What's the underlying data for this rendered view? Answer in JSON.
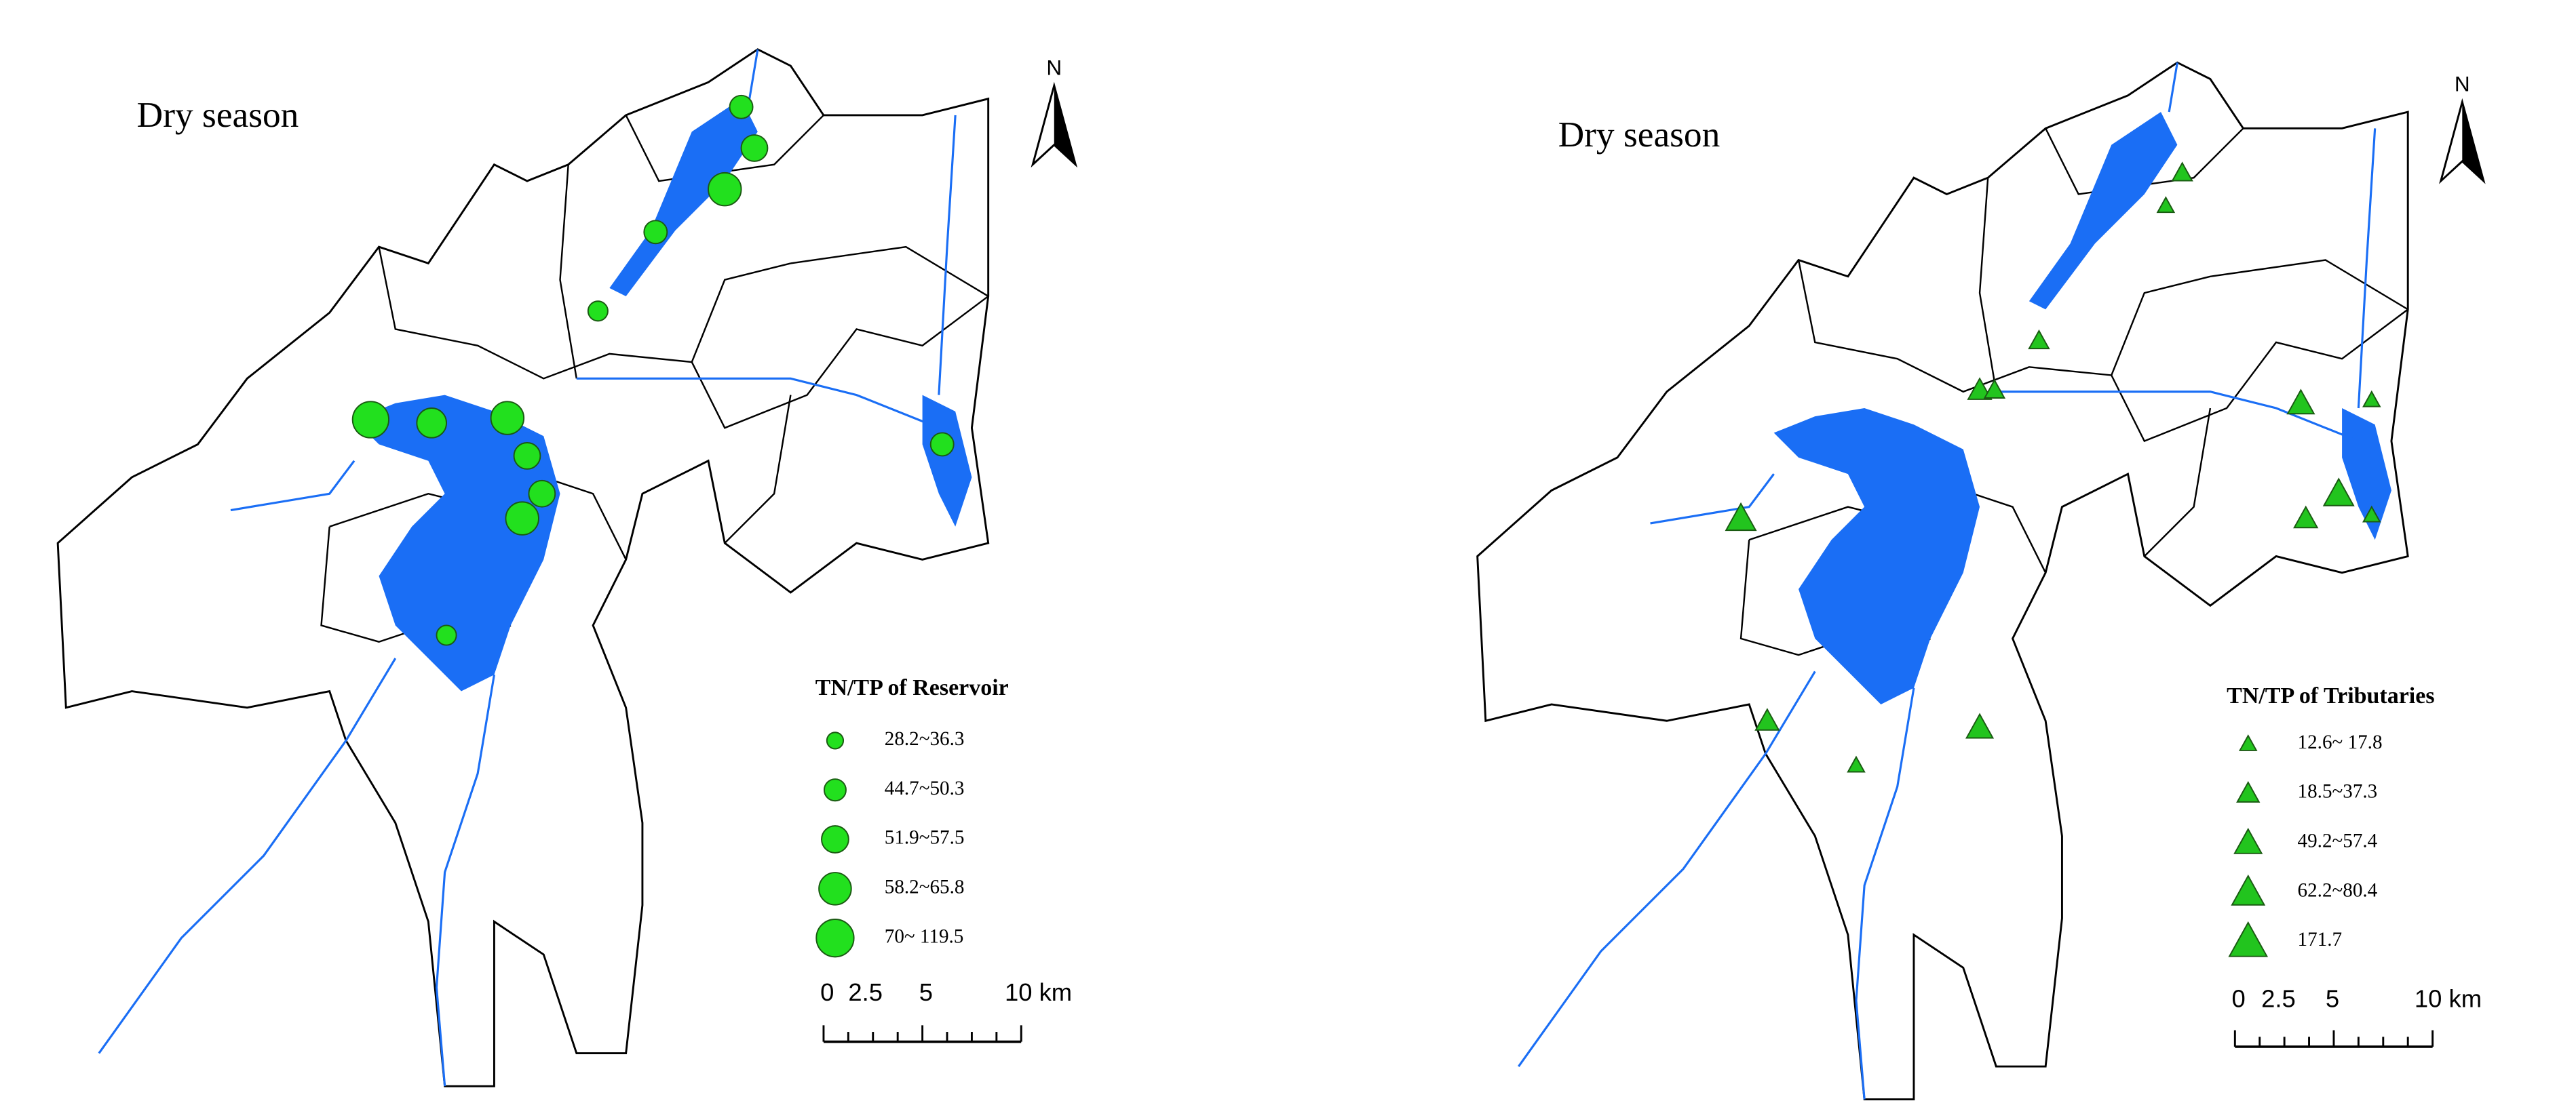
{
  "panels": [
    {
      "title": "Dry season",
      "north": "N",
      "legend": {
        "title": "TN/TP of Reservoir",
        "items": [
          "28.2~36.3",
          "44.7~50.3",
          "51.9~57.5",
          "58.2~65.8",
          "70~ 119.5"
        ]
      },
      "scale": [
        "0",
        "2.5",
        "5",
        "10 km"
      ]
    },
    {
      "title": "Dry season",
      "north": "N",
      "legend": {
        "title": "TN/TP of Tributaries",
        "items": [
          "12.6~ 17.8",
          "18.5~37.3",
          "49.2~57.4",
          "62.2~80.4",
          "171.7"
        ]
      },
      "scale": [
        "0",
        "2.5",
        "5",
        "10 km"
      ]
    }
  ]
}
